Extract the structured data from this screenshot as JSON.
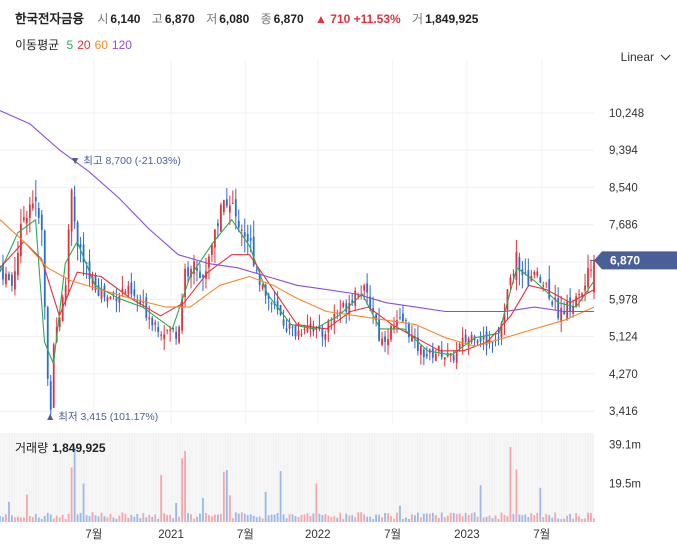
{
  "header": {
    "name": "한국전자금융",
    "open_label": "시",
    "open": "6,140",
    "high_label": "고",
    "high": "6,870",
    "low_label": "저",
    "low": "6,080",
    "close_label": "종",
    "close": "6,870",
    "change_arrow": "▲",
    "change": "710",
    "change_pct": "+11.53%",
    "volume_label": "거",
    "volume": "1,849,925"
  },
  "ma_legend": {
    "title": "이동평균",
    "items": [
      {
        "label": "5",
        "color": "#2fa84f"
      },
      {
        "label": "20",
        "color": "#e0323c"
      },
      {
        "label": "60",
        "color": "#f08a2a"
      },
      {
        "label": "120",
        "color": "#8b4fd6"
      }
    ]
  },
  "scale_selector": "Linear",
  "volume_panel": {
    "title": "거래량",
    "value": "1,849,925"
  },
  "annotations": {
    "high": "▼ 최고 8,700 (-21.03%)",
    "low": "▲ 최저 3,415 (101.17%)"
  },
  "current_price_tag": "6,870",
  "colors": {
    "up": "#e0323c",
    "down": "#2b6bd6",
    "price_tag": "#4a5f97",
    "grid": "#f0f0f0"
  },
  "chart_data": {
    "type": "candlestick",
    "price_axis": {
      "ticks": [
        3416,
        4270,
        5124,
        5978,
        6832,
        7686,
        8540,
        9394,
        10248
      ],
      "tick_labels": [
        "3,416",
        "4,270",
        "5,124",
        "5,978",
        "",
        "7,686",
        "8,540",
        "9,394",
        "10,248"
      ],
      "range": [
        3100,
        11000
      ]
    },
    "volume_axis": {
      "tick_labels": [
        "19.5m",
        "39.1m"
      ],
      "ticks": [
        19500000,
        39100000
      ],
      "max": 45000000
    },
    "x_axis": {
      "labels": [
        "7월",
        "2021",
        "7월",
        "2022",
        "7월",
        "2023",
        "7월"
      ],
      "positions": [
        0.158,
        0.288,
        0.413,
        0.535,
        0.661,
        0.786,
        0.912
      ]
    },
    "close_path": [
      [
        0.0,
        6700
      ],
      [
        0.02,
        6300
      ],
      [
        0.04,
        7900
      ],
      [
        0.055,
        8300
      ],
      [
        0.07,
        7600
      ],
      [
        0.08,
        4200
      ],
      [
        0.085,
        3415
      ],
      [
        0.09,
        5000
      ],
      [
        0.11,
        6200
      ],
      [
        0.12,
        8700
      ],
      [
        0.13,
        7200
      ],
      [
        0.15,
        6500
      ],
      [
        0.18,
        6000
      ],
      [
        0.21,
        6200
      ],
      [
        0.24,
        5800
      ],
      [
        0.27,
        5300
      ],
      [
        0.3,
        5200
      ],
      [
        0.31,
        6500
      ],
      [
        0.33,
        6800
      ],
      [
        0.34,
        6300
      ],
      [
        0.36,
        7500
      ],
      [
        0.38,
        8300
      ],
      [
        0.4,
        7800
      ],
      [
        0.42,
        7300
      ],
      [
        0.44,
        6300
      ],
      [
        0.46,
        5800
      ],
      [
        0.48,
        5400
      ],
      [
        0.5,
        5200
      ],
      [
        0.52,
        5500
      ],
      [
        0.54,
        5100
      ],
      [
        0.56,
        5600
      ],
      [
        0.58,
        5800
      ],
      [
        0.6,
        6200
      ],
      [
        0.61,
        6200
      ],
      [
        0.63,
        5700
      ],
      [
        0.64,
        5000
      ],
      [
        0.66,
        5300
      ],
      [
        0.68,
        5500
      ],
      [
        0.7,
        4900
      ],
      [
        0.72,
        4700
      ],
      [
        0.74,
        4800
      ],
      [
        0.76,
        4600
      ],
      [
        0.78,
        5000
      ],
      [
        0.8,
        5200
      ],
      [
        0.82,
        5000
      ],
      [
        0.84,
        5200
      ],
      [
        0.86,
        6500
      ],
      [
        0.87,
        7000
      ],
      [
        0.88,
        6400
      ],
      [
        0.9,
        6500
      ],
      [
        0.92,
        6300
      ],
      [
        0.94,
        5700
      ],
      [
        0.96,
        5800
      ],
      [
        0.98,
        6140
      ],
      [
        1.0,
        6870
      ]
    ],
    "series": [
      {
        "name": "5",
        "color": "#2fa84f",
        "values": [
          [
            0.0,
            6600
          ],
          [
            0.03,
            7500
          ],
          [
            0.06,
            7800
          ],
          [
            0.075,
            5000
          ],
          [
            0.09,
            4500
          ],
          [
            0.11,
            6800
          ],
          [
            0.13,
            7300
          ],
          [
            0.16,
            6300
          ],
          [
            0.2,
            6000
          ],
          [
            0.24,
            5800
          ],
          [
            0.29,
            5300
          ],
          [
            0.32,
            6500
          ],
          [
            0.36,
            7300
          ],
          [
            0.39,
            7800
          ],
          [
            0.42,
            7200
          ],
          [
            0.45,
            6100
          ],
          [
            0.49,
            5400
          ],
          [
            0.53,
            5300
          ],
          [
            0.57,
            5600
          ],
          [
            0.61,
            6100
          ],
          [
            0.64,
            5300
          ],
          [
            0.68,
            5300
          ],
          [
            0.72,
            4800
          ],
          [
            0.76,
            4700
          ],
          [
            0.8,
            5100
          ],
          [
            0.84,
            5200
          ],
          [
            0.87,
            6700
          ],
          [
            0.9,
            6400
          ],
          [
            0.94,
            5900
          ],
          [
            0.97,
            5800
          ],
          [
            1.0,
            6400
          ]
        ]
      },
      {
        "name": "20",
        "color": "#e0323c",
        "values": [
          [
            0.0,
            6700
          ],
          [
            0.04,
            7300
          ],
          [
            0.07,
            6900
          ],
          [
            0.1,
            5600
          ],
          [
            0.13,
            6600
          ],
          [
            0.17,
            6500
          ],
          [
            0.22,
            6000
          ],
          [
            0.27,
            5600
          ],
          [
            0.31,
            5900
          ],
          [
            0.35,
            6600
          ],
          [
            0.39,
            7000
          ],
          [
            0.42,
            7000
          ],
          [
            0.46,
            6200
          ],
          [
            0.5,
            5400
          ],
          [
            0.55,
            5300
          ],
          [
            0.59,
            5700
          ],
          [
            0.62,
            5800
          ],
          [
            0.66,
            5400
          ],
          [
            0.7,
            5100
          ],
          [
            0.74,
            4800
          ],
          [
            0.78,
            4800
          ],
          [
            0.82,
            5000
          ],
          [
            0.86,
            5600
          ],
          [
            0.89,
            6300
          ],
          [
            0.92,
            6200
          ],
          [
            0.96,
            5900
          ],
          [
            1.0,
            6200
          ]
        ]
      },
      {
        "name": "60",
        "color": "#f08a2a",
        "values": [
          [
            0.0,
            7800
          ],
          [
            0.04,
            7300
          ],
          [
            0.08,
            6700
          ],
          [
            0.12,
            6400
          ],
          [
            0.17,
            6200
          ],
          [
            0.22,
            6000
          ],
          [
            0.28,
            5800
          ],
          [
            0.32,
            5800
          ],
          [
            0.37,
            6300
          ],
          [
            0.42,
            6500
          ],
          [
            0.46,
            6300
          ],
          [
            0.5,
            6000
          ],
          [
            0.55,
            5700
          ],
          [
            0.6,
            5600
          ],
          [
            0.65,
            5500
          ],
          [
            0.7,
            5400
          ],
          [
            0.75,
            5100
          ],
          [
            0.8,
            4900
          ],
          [
            0.85,
            5100
          ],
          [
            0.9,
            5300
          ],
          [
            0.95,
            5500
          ],
          [
            1.0,
            5800
          ]
        ]
      },
      {
        "name": "120",
        "color": "#8b4fd6",
        "values": [
          [
            0.0,
            10300
          ],
          [
            0.05,
            10000
          ],
          [
            0.1,
            9400
          ],
          [
            0.15,
            8900
          ],
          [
            0.2,
            8300
          ],
          [
            0.25,
            7600
          ],
          [
            0.3,
            7000
          ],
          [
            0.35,
            6800
          ],
          [
            0.4,
            6700
          ],
          [
            0.45,
            6500
          ],
          [
            0.5,
            6300
          ],
          [
            0.55,
            6200
          ],
          [
            0.6,
            6100
          ],
          [
            0.65,
            5900
          ],
          [
            0.7,
            5800
          ],
          [
            0.75,
            5700
          ],
          [
            0.8,
            5700
          ],
          [
            0.85,
            5700
          ],
          [
            0.9,
            5800
          ],
          [
            0.95,
            5700
          ],
          [
            1.0,
            5700
          ]
        ]
      }
    ]
  }
}
